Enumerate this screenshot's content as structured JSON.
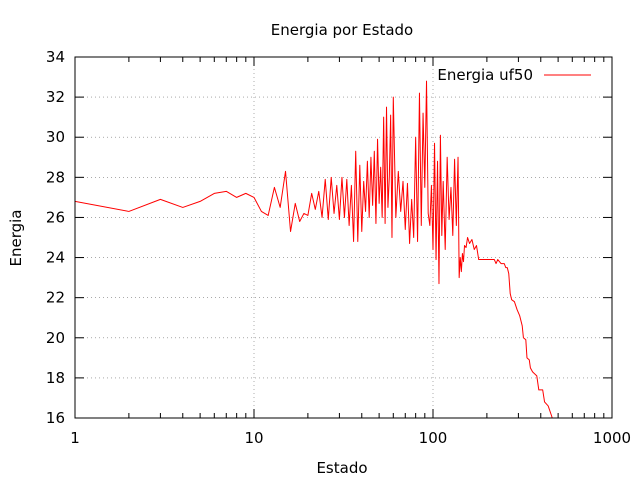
{
  "chart_data": {
    "type": "line",
    "title": "Energia por Estado",
    "xlabel": "Estado",
    "ylabel": "Energia",
    "x_scale": "log",
    "xlim": [
      1,
      1000
    ],
    "ylim": [
      16,
      34
    ],
    "x_ticks": [
      "1",
      "10",
      "100",
      "1000"
    ],
    "y_ticks": [
      "16",
      "18",
      "20",
      "22",
      "24",
      "26",
      "28",
      "30",
      "32",
      "34"
    ],
    "grid": true,
    "legend_position": "top-right",
    "series": [
      {
        "name": "Energia uf50",
        "color": "#ff0000",
        "points": [
          [
            1,
            26.8
          ],
          [
            2,
            26.3
          ],
          [
            3,
            26.9
          ],
          [
            4,
            26.5
          ],
          [
            5,
            26.8
          ],
          [
            6,
            27.2
          ],
          [
            7,
            27.3
          ],
          [
            8,
            27.0
          ],
          [
            9,
            27.2
          ],
          [
            10,
            27.0
          ],
          [
            11,
            26.3
          ],
          [
            12,
            26.1
          ],
          [
            13,
            27.5
          ],
          [
            14,
            26.5
          ],
          [
            15,
            28.3
          ],
          [
            16,
            25.3
          ],
          [
            17,
            26.7
          ],
          [
            18,
            25.8
          ],
          [
            19,
            26.2
          ],
          [
            20,
            26.1
          ],
          [
            21,
            27.2
          ],
          [
            22,
            26.4
          ],
          [
            23,
            27.3
          ],
          [
            24,
            26.0
          ],
          [
            25,
            27.9
          ],
          [
            26,
            25.9
          ],
          [
            27,
            28.0
          ],
          [
            28,
            26.2
          ],
          [
            29,
            27.6
          ],
          [
            30,
            25.9
          ],
          [
            31,
            28.0
          ],
          [
            32,
            26.0
          ],
          [
            33,
            27.9
          ],
          [
            34,
            25.6
          ],
          [
            35,
            27.6
          ],
          [
            36,
            24.8
          ],
          [
            37,
            29.3
          ],
          [
            38,
            24.8
          ],
          [
            39,
            28.6
          ],
          [
            40,
            25.3
          ],
          [
            41,
            27.8
          ],
          [
            42,
            26.3
          ],
          [
            43,
            28.8
          ],
          [
            44,
            26.0
          ],
          [
            45,
            29.0
          ],
          [
            46,
            26.6
          ],
          [
            47,
            29.3
          ],
          [
            48,
            25.7
          ],
          [
            49,
            29.9
          ],
          [
            50,
            26.7
          ],
          [
            51,
            28.5
          ],
          [
            52,
            26.0
          ],
          [
            53,
            31.0
          ],
          [
            54,
            25.7
          ],
          [
            55,
            31.5
          ],
          [
            56,
            26.5
          ],
          [
            57,
            28.0
          ],
          [
            58,
            31.1
          ],
          [
            59,
            25.0
          ],
          [
            60,
            32.0
          ],
          [
            62,
            26.0
          ],
          [
            64,
            28.3
          ],
          [
            66,
            26.3
          ],
          [
            68,
            27.8
          ],
          [
            70,
            25.4
          ],
          [
            72,
            27.7
          ],
          [
            74,
            24.7
          ],
          [
            76,
            26.9
          ],
          [
            78,
            25.0
          ],
          [
            80,
            30.0
          ],
          [
            82,
            24.8
          ],
          [
            84,
            32.2
          ],
          [
            86,
            25.6
          ],
          [
            88,
            31.2
          ],
          [
            90,
            27.5
          ],
          [
            92,
            32.8
          ],
          [
            94,
            26.2
          ],
          [
            96,
            25.6
          ],
          [
            98,
            27.6
          ],
          [
            100,
            24.4
          ],
          [
            102,
            29.7
          ],
          [
            104,
            23.9
          ],
          [
            106,
            28.8
          ],
          [
            108,
            22.7
          ],
          [
            110,
            30.1
          ],
          [
            112,
            25.1
          ],
          [
            114,
            27.8
          ],
          [
            117,
            24.4
          ],
          [
            120,
            29.0
          ],
          [
            123,
            25.9
          ],
          [
            126,
            27.5
          ],
          [
            129,
            25.1
          ],
          [
            132,
            28.9
          ],
          [
            135,
            25.6
          ],
          [
            138,
            29.0
          ],
          [
            140,
            23.0
          ],
          [
            142,
            24.0
          ],
          [
            144,
            23.3
          ],
          [
            146,
            24.2
          ],
          [
            148,
            23.8
          ],
          [
            150,
            24.6
          ],
          [
            153,
            24.5
          ],
          [
            156,
            25.0
          ],
          [
            160,
            24.7
          ],
          [
            165,
            24.9
          ],
          [
            170,
            24.4
          ],
          [
            175,
            24.6
          ],
          [
            180,
            23.9
          ],
          [
            200,
            23.9
          ],
          [
            220,
            23.9
          ],
          [
            225,
            23.7
          ],
          [
            230,
            23.9
          ],
          [
            240,
            23.7
          ],
          [
            250,
            23.7
          ],
          [
            255,
            23.5
          ],
          [
            260,
            23.5
          ],
          [
            265,
            23.2
          ],
          [
            270,
            22.2
          ],
          [
            275,
            21.9
          ],
          [
            285,
            21.8
          ],
          [
            295,
            21.4
          ],
          [
            305,
            21.1
          ],
          [
            315,
            20.6
          ],
          [
            320,
            20.0
          ],
          [
            330,
            19.9
          ],
          [
            335,
            19.0
          ],
          [
            345,
            18.9
          ],
          [
            350,
            18.5
          ],
          [
            360,
            18.3
          ],
          [
            380,
            18.1
          ],
          [
            390,
            17.4
          ],
          [
            410,
            17.4
          ],
          [
            420,
            16.8
          ],
          [
            440,
            16.6
          ],
          [
            460,
            16.1
          ],
          [
            470,
            15.8
          ]
        ]
      }
    ]
  }
}
